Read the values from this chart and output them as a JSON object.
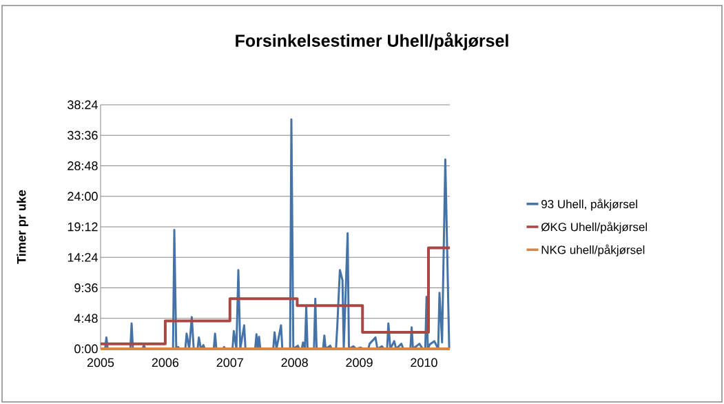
{
  "chart_data": {
    "type": "line",
    "title": "Forsinkelsestimer Uhell/påkjørsel",
    "ylabel": "Timer pr uke",
    "xlim": [
      2005,
      2010.4
    ],
    "xticks": [
      2005,
      2006,
      2007,
      2008,
      2009,
      2010
    ],
    "ylim": [
      0,
      38.4
    ],
    "yticks": [
      {
        "value": 0,
        "label": "0:00"
      },
      {
        "value": 4.8,
        "label": "4:48"
      },
      {
        "value": 9.6,
        "label": "9:36"
      },
      {
        "value": 14.4,
        "label": "14:24"
      },
      {
        "value": 19.2,
        "label": "19:12"
      },
      {
        "value": 24,
        "label": "24:00"
      },
      {
        "value": 28.8,
        "label": "28:48"
      },
      {
        "value": 33.6,
        "label": "33:36"
      },
      {
        "value": 38.4,
        "label": "38:24"
      }
    ],
    "grid": "y",
    "legend": "right",
    "series": [
      {
        "name": "93 Uhell, påkjørsel",
        "color": "#4572a7",
        "x": [
          2005.0,
          2005.07,
          2005.09,
          2005.11,
          2005.46,
          2005.48,
          2005.5,
          2005.65,
          2005.67,
          2005.69,
          2006.12,
          2006.14,
          2006.17,
          2006.2,
          2006.22,
          2006.31,
          2006.33,
          2006.37,
          2006.41,
          2006.44,
          2006.5,
          2006.52,
          2006.55,
          2006.59,
          2006.61,
          2006.75,
          2006.77,
          2006.79,
          2006.89,
          2006.91,
          2006.93,
          2007.04,
          2007.06,
          2007.1,
          2007.13,
          2007.16,
          2007.22,
          2007.24,
          2007.39,
          2007.41,
          2007.43,
          2007.45,
          2007.47,
          2007.67,
          2007.69,
          2007.72,
          2007.79,
          2007.81,
          2007.93,
          2007.95,
          2007.98,
          2008.05,
          2008.07,
          2008.11,
          2008.13,
          2008.16,
          2008.18,
          2008.2,
          2008.3,
          2008.32,
          2008.34,
          2008.44,
          2008.46,
          2008.48,
          2008.55,
          2008.57,
          2008.64,
          2008.66,
          2008.7,
          2008.74,
          2008.76,
          2008.82,
          2008.84,
          2008.91,
          2008.95,
          2009.02,
          2009.06,
          2009.14,
          2009.16,
          2009.25,
          2009.28,
          2009.35,
          2009.38,
          2009.43,
          2009.45,
          2009.48,
          2009.54,
          2009.57,
          2009.65,
          2009.68,
          2009.79,
          2009.81,
          2009.83,
          2009.93,
          2009.98,
          2010.02,
          2010.04,
          2010.06,
          2010.09,
          2010.16,
          2010.22,
          2010.24,
          2010.28,
          2010.33,
          2010.39
        ],
        "values": [
          0,
          0,
          1.8,
          0,
          0,
          4.0,
          0,
          0,
          0.6,
          0,
          0,
          18.7,
          0,
          0.3,
          0,
          0,
          2.4,
          0,
          5.0,
          0,
          0,
          1.8,
          0,
          0.6,
          0,
          0,
          2.4,
          0,
          0,
          0.3,
          0,
          0,
          2.8,
          0,
          12.4,
          0,
          3.7,
          0,
          0,
          2.3,
          0,
          1.9,
          0,
          0,
          2.6,
          0,
          3.7,
          0,
          0,
          36.1,
          0,
          0.5,
          0,
          0,
          1.0,
          0,
          6.6,
          0,
          0,
          7.9,
          0,
          0,
          2.1,
          0,
          0.5,
          0,
          0,
          3.6,
          12.4,
          10.8,
          0,
          18.2,
          0,
          0.4,
          0,
          0.2,
          0,
          0,
          0.8,
          1.8,
          0,
          0.4,
          0,
          0,
          4.0,
          0,
          1.2,
          0,
          0.8,
          0,
          0,
          3.4,
          0,
          0.8,
          0,
          0,
          8.2,
          0,
          0.7,
          1.2,
          0,
          8.8,
          1.0,
          29.8,
          0.1
        ]
      },
      {
        "name": "ØKG Uhell/påkjørsel",
        "type": "step",
        "color": "#aa4643",
        "x": [
          2005,
          2006,
          2007,
          2008.04,
          2009.05,
          2010.07,
          2010.4
        ],
        "values": [
          0.8,
          4.4,
          7.9,
          6.8,
          2.6,
          15.9,
          15.9
        ]
      },
      {
        "name": "NKG uhell/påkjørsel",
        "color": "#db843d",
        "x": [
          2005,
          2010.4
        ],
        "values": [
          0,
          0
        ]
      }
    ]
  }
}
